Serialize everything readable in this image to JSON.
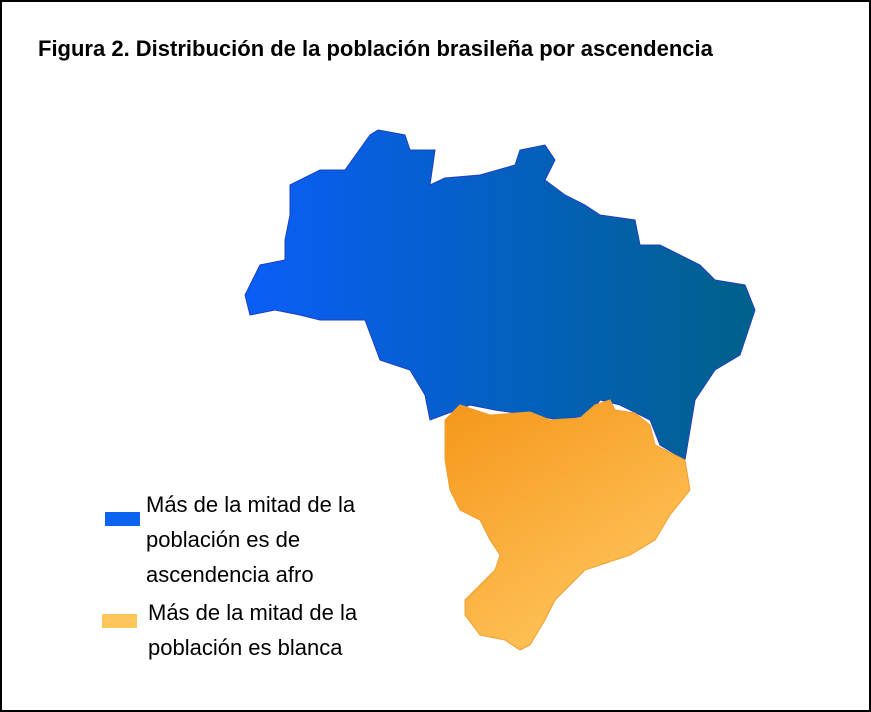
{
  "title": "Figura 2. Distribución de la población brasileña por ascendencia",
  "legend": [
    {
      "label_lines": [
        "Más de la mitad de la",
        "población es de",
        "ascendencia afro"
      ],
      "color": "#0a64f0"
    },
    {
      "label_lines": [
        "Más de la mitad de la",
        "población es blanca"
      ],
      "color": "#ffc65e"
    }
  ]
}
